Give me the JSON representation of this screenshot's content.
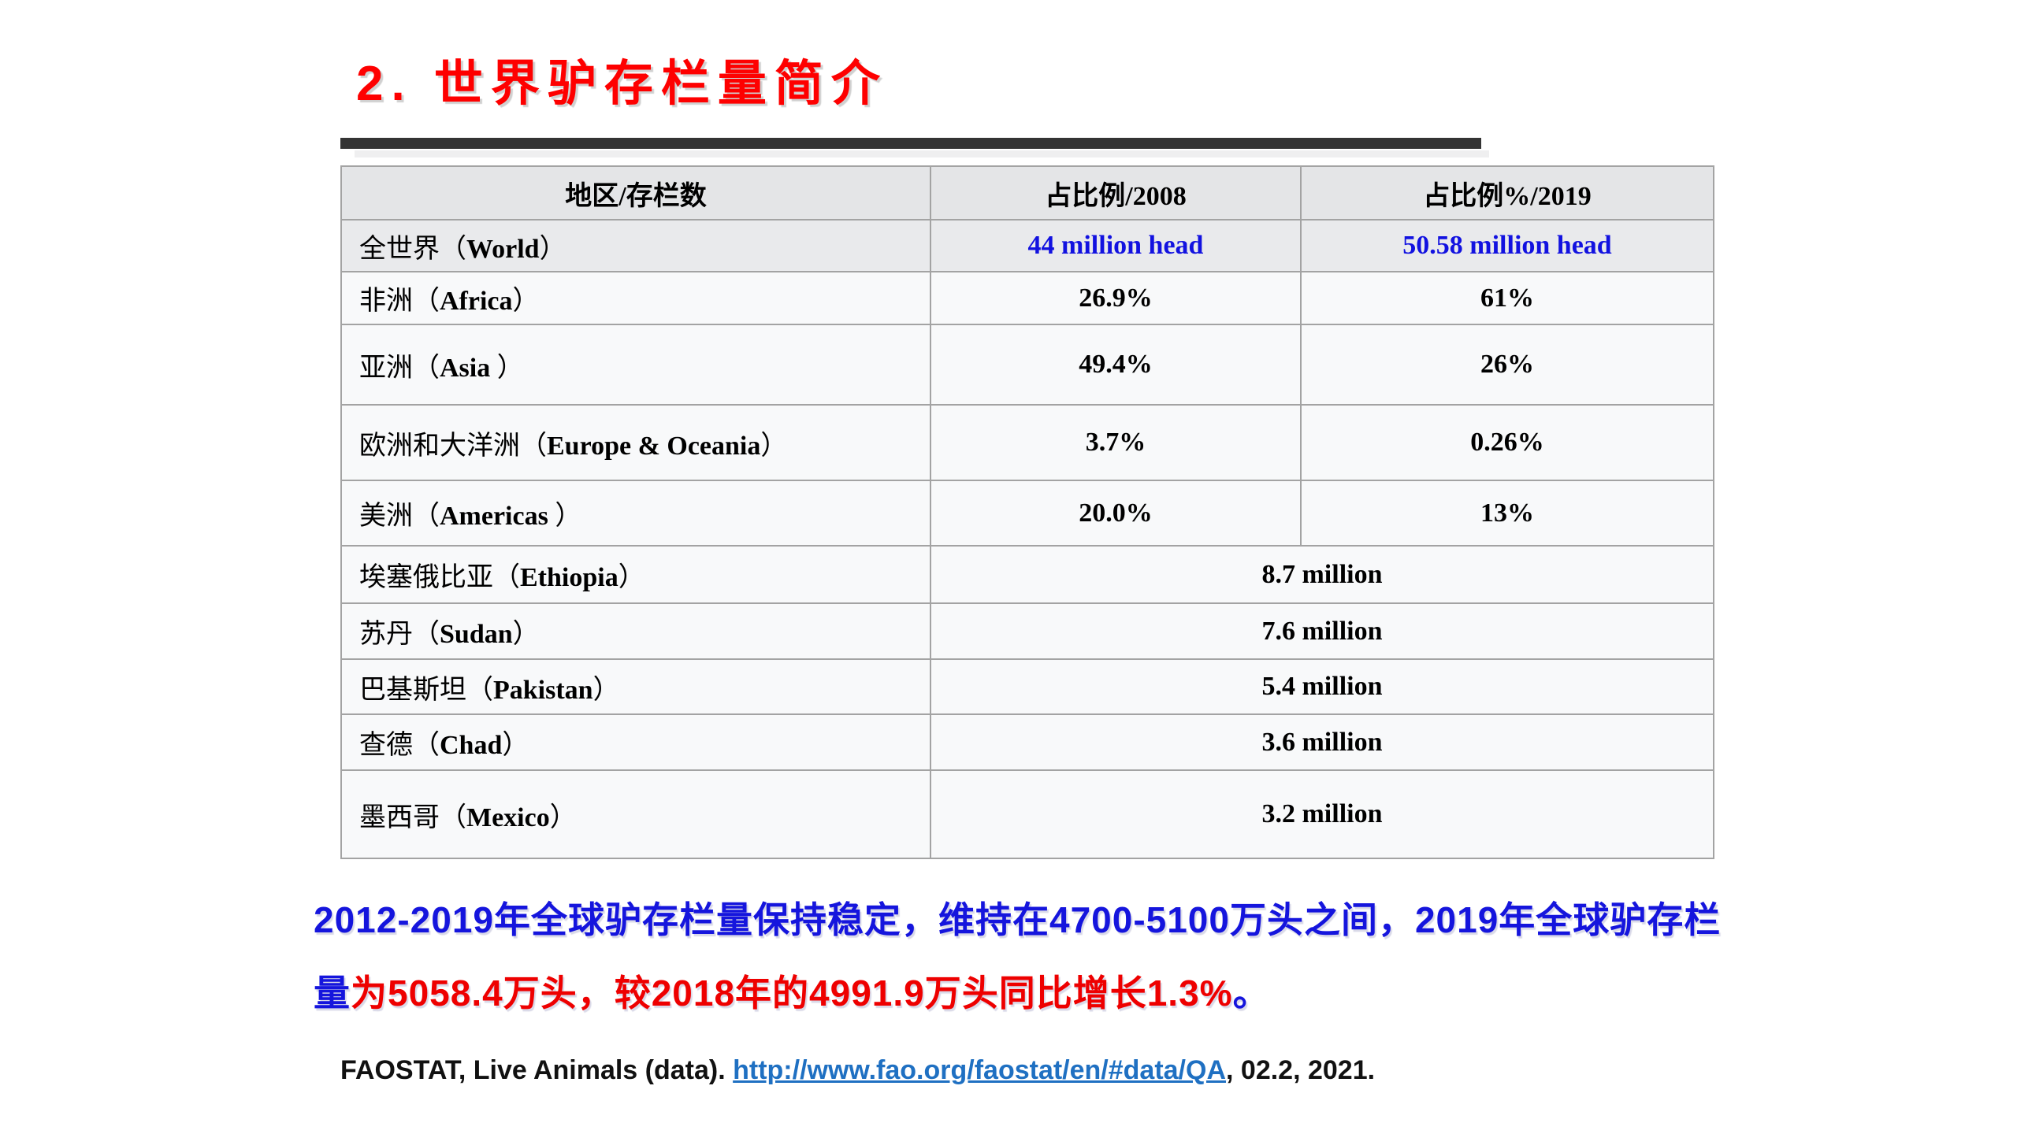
{
  "title": "2. 世界驴存栏量简介",
  "table": {
    "headers": [
      "地区/存栏数",
      "占比例/2008",
      "占比例%/2019"
    ],
    "rows": [
      {
        "region": "全世界（World）",
        "v2008": "44 million head",
        "v2019": "50.58 million head",
        "accent": true
      },
      {
        "region": "非洲（Africa）",
        "v2008": "26.9%",
        "v2019": "61%"
      },
      {
        "region": "亚洲（Asia ）",
        "v2008": "49.4%",
        "v2019": "26%"
      },
      {
        "region": "欧洲和大洋洲（Europe & Oceania）",
        "v2008": "3.7%",
        "v2019": "0.26%"
      },
      {
        "region": "美洲（Americas ）",
        "v2008": "20.0%",
        "v2019": "13%"
      },
      {
        "region": "埃塞俄比亚（Ethiopia）",
        "value": "8.7 million",
        "merged": true
      },
      {
        "region": "苏丹（Sudan）",
        "value": "7.6 million",
        "merged": true
      },
      {
        "region": "巴基斯坦（Pakistan）",
        "value": "5.4 million",
        "merged": true
      },
      {
        "region": "查德（Chad）",
        "value": "3.6 million",
        "merged": true
      },
      {
        "region": "墨西哥（Mexico）",
        "value": "3.2 million",
        "merged": true
      }
    ]
  },
  "summary": {
    "lines": [
      {
        "segments": [
          {
            "text": "2012-2019年全球驴存栏量保持稳定，维持在4700-5100万头之间，2019年全球驴存栏",
            "color": "blue"
          }
        ]
      },
      {
        "segments": [
          {
            "text": "量",
            "color": "blue"
          },
          {
            "text": "为5058.4万头，较2018年的4991.9万头同比增长1.3%",
            "color": "red"
          },
          {
            "text": "。",
            "color": "blue"
          }
        ]
      }
    ]
  },
  "citation": {
    "segments": [
      {
        "text": "FAOSTAT, Live Animals (data). ",
        "type": "text"
      },
      {
        "text": "http://www.fao.org/faostat/en/#data/QA",
        "type": "link"
      },
      {
        "text": ", 02.2, 2021.",
        "type": "text"
      }
    ]
  },
  "colors": {
    "title_red": "#fe0000",
    "paragraph_blue": "#1515dd",
    "paragraph_red": "#ee0000",
    "table_value_blue": "#1212e0",
    "link_blue": "#1f70c2",
    "title_bar_dark": "#343434",
    "header_bg": "#e4e5e7",
    "world_row_bg": "#e9eaec",
    "row_bg": "#f8f9fa"
  }
}
